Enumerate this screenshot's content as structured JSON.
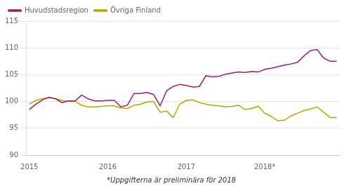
{
  "chart_data": {
    "type": "line",
    "categories": [
      "2015",
      null,
      null,
      null,
      null,
      null,
      null,
      null,
      null,
      null,
      null,
      null,
      "2016",
      null,
      null,
      null,
      null,
      null,
      null,
      null,
      null,
      null,
      null,
      null,
      "2017",
      null,
      null,
      null,
      null,
      null,
      null,
      null,
      null,
      null,
      null,
      null,
      "2018*",
      null,
      null,
      null,
      null,
      null,
      null,
      null,
      null,
      null,
      null,
      null
    ],
    "series": [
      {
        "name": "Huvudstadsregion",
        "color": "#9B1D6E",
        "values": [
          98.5,
          99.5,
          100.3,
          100.8,
          100.5,
          99.8,
          100.1,
          100.1,
          101.2,
          100.5,
          100.1,
          100.1,
          100.2,
          100.2,
          99.0,
          99.3,
          101.5,
          101.5,
          101.7,
          101.3,
          99.2,
          102.0,
          102.8,
          103.2,
          103.0,
          102.7,
          102.8,
          104.8,
          104.6,
          104.7,
          105.1,
          105.3,
          105.5,
          105.4,
          105.6,
          105.5,
          106.0,
          106.2,
          106.5,
          106.8,
          107.0,
          107.3,
          108.5,
          109.5,
          109.7,
          108.1,
          107.5,
          107.5
        ]
      },
      {
        "name": "Övriga Finland",
        "color": "#AAAA00",
        "values": [
          99.5,
          100.2,
          100.5,
          100.7,
          100.5,
          100.2,
          100.0,
          100.0,
          99.3,
          99.0,
          99.0,
          99.1,
          99.2,
          99.2,
          98.8,
          98.7,
          99.3,
          99.5,
          99.9,
          100.0,
          98.0,
          98.2,
          97.0,
          99.5,
          100.2,
          100.3,
          99.8,
          99.5,
          99.3,
          99.2,
          99.0,
          99.1,
          99.3,
          98.5,
          98.7,
          99.1,
          97.8,
          97.2,
          96.4,
          96.5,
          97.3,
          97.8,
          98.3,
          98.6,
          99.0,
          98.0,
          97.0,
          97.0
        ]
      }
    ],
    "ylim": [
      90,
      115
    ],
    "yticks": [
      90,
      95,
      100,
      105,
      110,
      115
    ],
    "grid": "y",
    "legend": "upper left",
    "annotations": [
      "*Uppgifterna är preliminära för 2018"
    ]
  }
}
